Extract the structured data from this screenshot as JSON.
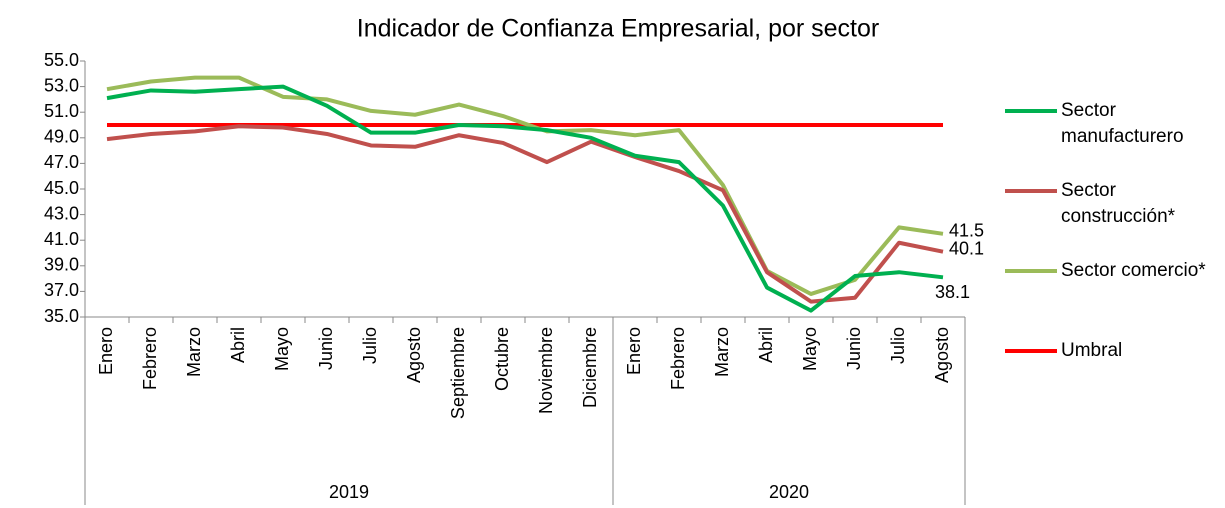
{
  "chart_data": {
    "type": "line",
    "title": "Indicador de Confianza Empresarial, por sector",
    "groups": [
      {
        "label": "2019",
        "categories": [
          "Enero",
          "Febrero",
          "Marzo",
          "Abril",
          "Mayo",
          "Junio",
          "Julio",
          "Agosto",
          "Septiembre",
          "Octubre",
          "Noviembre",
          "Diciembre"
        ]
      },
      {
        "label": "2020",
        "categories": [
          "Enero",
          "Febrero",
          "Marzo",
          "Abril",
          "Mayo",
          "Junio",
          "Julio",
          "Agosto"
        ]
      }
    ],
    "series": [
      {
        "name": "Sector manufacturero",
        "color": "#00b050",
        "values": [
          52.1,
          52.7,
          52.6,
          52.8,
          53.0,
          51.5,
          49.4,
          49.4,
          50.0,
          49.9,
          49.6,
          49.0,
          47.6,
          47.1,
          43.7,
          37.3,
          35.5,
          38.2,
          38.5,
          38.1
        ],
        "last_label": true
      },
      {
        "name": "Sector construcción*",
        "color": "#c0504d",
        "values": [
          48.9,
          49.3,
          49.5,
          49.9,
          49.8,
          49.3,
          48.4,
          48.3,
          49.2,
          48.6,
          47.1,
          48.7,
          47.5,
          46.4,
          44.9,
          38.5,
          36.2,
          36.5,
          40.8,
          40.1
        ],
        "last_label": true
      },
      {
        "name": "Sector comercio*",
        "color": "#9bbb59",
        "values": [
          52.8,
          53.4,
          53.7,
          53.7,
          52.2,
          52.0,
          51.1,
          50.8,
          51.6,
          50.7,
          49.5,
          49.6,
          49.2,
          49.6,
          45.3,
          38.6,
          36.8,
          37.9,
          42.0,
          41.5
        ],
        "last_label": true
      },
      {
        "name": "Umbral",
        "color": "#ff0000",
        "values": [
          50,
          50,
          50,
          50,
          50,
          50,
          50,
          50,
          50,
          50,
          50,
          50,
          50,
          50,
          50,
          50,
          50,
          50,
          50,
          50
        ],
        "last_label": false
      }
    ],
    "ylim": [
      35,
      55
    ],
    "yticks": [
      {
        "value": 35,
        "label": "35.0"
      },
      {
        "value": 37,
        "label": "37.0"
      },
      {
        "value": 39,
        "label": "39.0"
      },
      {
        "value": 41,
        "label": "41.0"
      },
      {
        "value": 43,
        "label": "43.0"
      },
      {
        "value": 45,
        "label": "45.0"
      },
      {
        "value": 47,
        "label": "47.0"
      },
      {
        "value": 49,
        "label": "49.0"
      },
      {
        "value": 51,
        "label": "51.0"
      },
      {
        "value": 53,
        "label": "53.0"
      },
      {
        "value": 55,
        "label": "55.0"
      }
    ],
    "grid": false,
    "legend": "right"
  }
}
